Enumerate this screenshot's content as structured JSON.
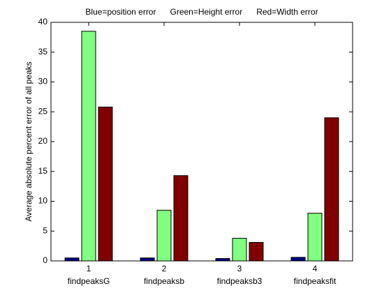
{
  "chart_data": {
    "type": "bar",
    "title": "Blue=position error      Green=Height error      Red=Width error",
    "y_label": "Average absolute percent error of all peaks",
    "x": [
      1,
      2,
      3,
      4
    ],
    "categories": [
      "findpeaksG",
      "findpeaksb",
      "findpeaksb3",
      "findpeaksfit"
    ],
    "series": [
      {
        "color": "#000080",
        "values": [
          0.5,
          0.5,
          0.4,
          0.6
        ]
      },
      {
        "color": "#80ff80",
        "values": [
          38.5,
          8.5,
          3.8,
          8.0
        ]
      },
      {
        "color": "#800000",
        "values": [
          25.8,
          14.3,
          3.1,
          24.0
        ]
      }
    ],
    "xlim": [
      0.5,
      4.5
    ],
    "xticks": [
      1,
      2,
      3,
      4
    ],
    "ylim": [
      0,
      40
    ],
    "yticks": [
      0,
      5,
      10,
      15,
      20,
      25,
      30,
      35,
      40
    ]
  }
}
